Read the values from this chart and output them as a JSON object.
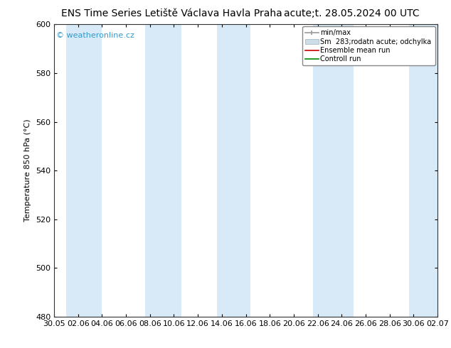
{
  "title_left": "ENS Time Series Letiště Václava Havla Praha",
  "title_right": "acute;t. 28.05.2024 00 UTC",
  "ylabel": "Temperature 850 hPa (°C)",
  "watermark": "© weatheronline.cz",
  "ylim": [
    480,
    600
  ],
  "yticks": [
    480,
    500,
    520,
    540,
    560,
    580,
    600
  ],
  "x_labels": [
    "30.05",
    "02.06",
    "04.06",
    "06.06",
    "08.06",
    "10.06",
    "12.06",
    "14.06",
    "16.06",
    "18.06",
    "20.06",
    "22.06",
    "24.06",
    "26.06",
    "28.06",
    "30.06",
    "02.07"
  ],
  "band_color": "#d8eaf7",
  "background_color": "#ffffff",
  "plot_bg": "#f0f0f0",
  "title_fontsize": 10,
  "axis_fontsize": 8,
  "tick_fontsize": 8,
  "watermark_color": "#3399cc",
  "legend_label1": "min/max",
  "legend_label2": "Sm  283;rodatn acute; odchylka",
  "legend_label3": "Ensemble mean run",
  "legend_label4": "Controll run",
  "legend_color1": "#999999",
  "legend_color2": "#ccdde8",
  "legend_color3": "#cc0000",
  "legend_color4": "#008800"
}
